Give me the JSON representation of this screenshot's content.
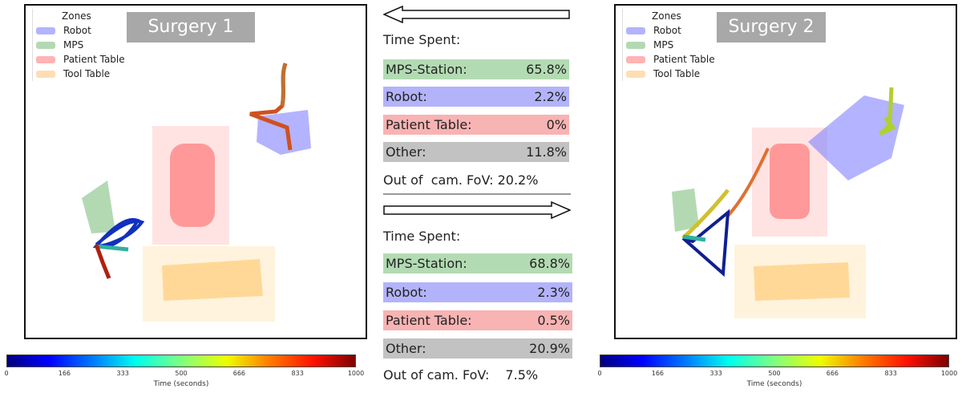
{
  "legend": {
    "title": "Zones",
    "items": [
      "Robot",
      "MPS",
      "Patient Table",
      "Tool Table"
    ]
  },
  "colors": {
    "robot": "#8080ff",
    "mps": "#80c080",
    "patient_table": "#ff8080",
    "tool_table": "#ffd080",
    "stat_mps": "#b3dbb3",
    "stat_robot": "#b3b3fb",
    "stat_patient": "#f8b3b3",
    "stat_other": "#c2c2c2"
  },
  "surgery1": {
    "title": "Surgery 1"
  },
  "surgery2": {
    "title": "Surgery 2"
  },
  "colorbar": {
    "ticks": [
      "0",
      "166",
      "333",
      "500",
      "666",
      "833",
      "1000"
    ],
    "label": "Time (seconds)"
  },
  "stats1": {
    "header": "Time Spent:",
    "rows": [
      {
        "label": "MPS-Station:",
        "value": "65.8%"
      },
      {
        "label": "Robot:",
        "value": "2.2%"
      },
      {
        "label": "Patient Table:",
        "value": "0%"
      },
      {
        "label": "Other:",
        "value": "11.8%"
      }
    ],
    "fov": "Out of  cam. FoV: 20.2%"
  },
  "stats2": {
    "header": "Time Spent:",
    "rows": [
      {
        "label": "MPS-Station:",
        "value": "68.8%"
      },
      {
        "label": "Robot:",
        "value": "2.3%"
      },
      {
        "label": "Patient Table:",
        "value": "0.5%"
      },
      {
        "label": "Other:",
        "value": "20.9%"
      }
    ],
    "fov_label": "Out of cam. FoV:",
    "fov_value": "7.5%"
  }
}
